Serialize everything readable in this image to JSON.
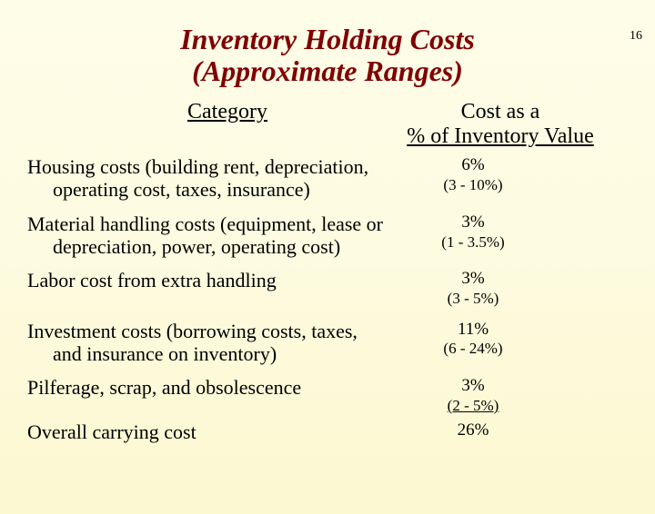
{
  "page_number": "16",
  "title_line1": "Inventory Holding Costs",
  "title_line2": "(Approximate Ranges)",
  "header_left": "Category",
  "header_right_line1": "Cost as a",
  "header_right_line2": "% of Inventory Value",
  "rows": [
    {
      "label_line1": "Housing costs (building rent, depreciation,",
      "label_line2": "operating cost, taxes, insurance)",
      "value_pct": "6%",
      "value_range": "(3 - 10%)"
    },
    {
      "label_line1": "Material handling costs (equipment, lease or",
      "label_line2": "depreciation, power, operating cost)",
      "value_pct": "3%",
      "value_range": "(1 - 3.5%)"
    },
    {
      "label_line1": "Labor cost from extra handling",
      "label_line2": "",
      "value_pct": "3%",
      "value_range": "(3 - 5%)"
    },
    {
      "label_line1": "Investment costs (borrowing costs, taxes,",
      "label_line2": "and insurance on inventory)",
      "value_pct": "11%",
      "value_range": "(6 - 24%)"
    },
    {
      "label_line1": "Pilferage, scrap, and obsolescence",
      "label_line2": "",
      "value_pct": "3%",
      "value_range": "(2 - 5%)"
    }
  ],
  "overall": {
    "label": "Overall carrying cost",
    "value_pct": "26%"
  },
  "colors": {
    "title_color": "#800000",
    "text_color": "#000000",
    "bg_top": "#fefde8",
    "bg_bottom": "#fcf8d0"
  }
}
